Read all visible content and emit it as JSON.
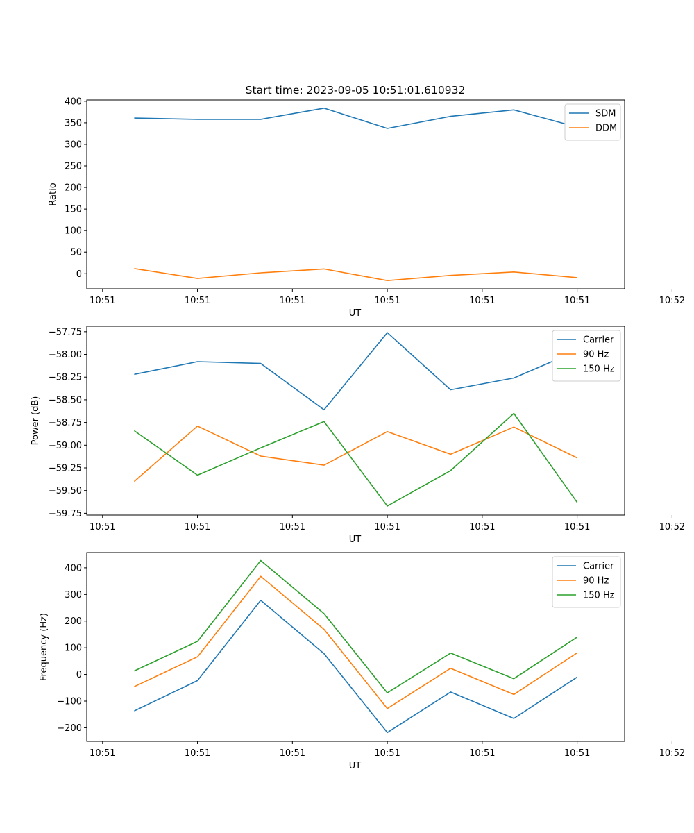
{
  "chart_data": [
    {
      "type": "line",
      "title": "Start time: 2023-09-05 10:51:01.610932",
      "xlabel": "UT",
      "ylabel": "Ratio",
      "xlim": [
        0,
        8.5
      ],
      "ylim": [
        -35,
        403
      ],
      "x": [
        0.75,
        1.75,
        2.75,
        3.75,
        4.75,
        5.75,
        6.75,
        7.75
      ],
      "x_ticks": [
        0.25,
        1.75,
        3.25,
        4.75,
        6.25,
        7.75,
        9.25
      ],
      "x_tick_labels": [
        "10:51",
        "10:51",
        "10:51",
        "10:51",
        "10:51",
        "10:51",
        "10:52"
      ],
      "y_ticks": [
        0,
        50,
        100,
        150,
        200,
        250,
        300,
        350,
        400
      ],
      "y_tick_labels": [
        "0",
        "50",
        "100",
        "150",
        "200",
        "250",
        "300",
        "350",
        "400"
      ],
      "legend": "top-right",
      "series": [
        {
          "name": "SDM",
          "color": "#1f77b4",
          "values": [
            361,
            358,
            358,
            384,
            337,
            365,
            380,
            340
          ]
        },
        {
          "name": "DDM",
          "color": "#ff7f0e",
          "values": [
            12,
            -11,
            2,
            11,
            -16,
            -4,
            4,
            -9
          ]
        }
      ]
    },
    {
      "type": "line",
      "title": "",
      "xlabel": "UT",
      "ylabel": "Power (dB)",
      "xlim": [
        0,
        8.5
      ],
      "ylim": [
        -59.77,
        -57.69
      ],
      "x": [
        0.75,
        1.75,
        2.75,
        3.75,
        4.75,
        5.75,
        6.75,
        7.75
      ],
      "x_ticks": [
        0.25,
        1.75,
        3.25,
        4.75,
        6.25,
        7.75,
        9.25
      ],
      "x_tick_labels": [
        "10:51",
        "10:51",
        "10:51",
        "10:51",
        "10:51",
        "10:51",
        "10:52"
      ],
      "y_ticks": [
        -57.75,
        -58.0,
        -58.25,
        -58.5,
        -58.75,
        -59.0,
        -59.25,
        -59.5,
        -59.75
      ],
      "y_tick_labels": [
        "−57.75",
        "−58.00",
        "−58.25",
        "−58.50",
        "−58.75",
        "−59.00",
        "−59.25",
        "−59.50",
        "−59.75"
      ],
      "legend": "top-right",
      "series": [
        {
          "name": "Carrier",
          "color": "#1f77b4",
          "values": [
            -58.22,
            -58.08,
            -58.1,
            -58.61,
            -57.76,
            -58.39,
            -58.26,
            -57.96
          ]
        },
        {
          "name": "90 Hz",
          "color": "#ff7f0e",
          "values": [
            -59.4,
            -58.79,
            -59.12,
            -59.22,
            -58.85,
            -59.1,
            -58.8,
            -59.14
          ]
        },
        {
          "name": "150 Hz",
          "color": "#2ca02c",
          "values": [
            -58.84,
            -59.33,
            -59.03,
            -58.74,
            -59.67,
            -59.28,
            -58.65,
            -59.63
          ]
        }
      ]
    },
    {
      "type": "line",
      "title": "",
      "xlabel": "UT",
      "ylabel": "Frequency (Hz)",
      "xlim": [
        0,
        8.5
      ],
      "ylim": [
        -251,
        457
      ],
      "x": [
        0.75,
        1.75,
        2.75,
        3.75,
        4.75,
        5.75,
        6.75,
        7.75
      ],
      "x_ticks": [
        0.25,
        1.75,
        3.25,
        4.75,
        6.25,
        7.75,
        9.25
      ],
      "x_tick_labels": [
        "10:51",
        "10:51",
        "10:51",
        "10:51",
        "10:51",
        "10:51",
        "10:52"
      ],
      "y_ticks": [
        -200,
        -100,
        0,
        100,
        200,
        300,
        400
      ],
      "y_tick_labels": [
        "−200",
        "−100",
        "0",
        "100",
        "200",
        "300",
        "400"
      ],
      "legend": "top-right",
      "series": [
        {
          "name": "Carrier",
          "color": "#1f77b4",
          "values": [
            -137,
            -23,
            278,
            78,
            -218,
            -66,
            -165,
            -10
          ]
        },
        {
          "name": "90 Hz",
          "color": "#ff7f0e",
          "values": [
            -46,
            66,
            368,
            169,
            -128,
            23,
            -75,
            81
          ]
        },
        {
          "name": "150 Hz",
          "color": "#2ca02c",
          "values": [
            13,
            124,
            427,
            228,
            -69,
            80,
            -16,
            140
          ]
        }
      ]
    }
  ]
}
